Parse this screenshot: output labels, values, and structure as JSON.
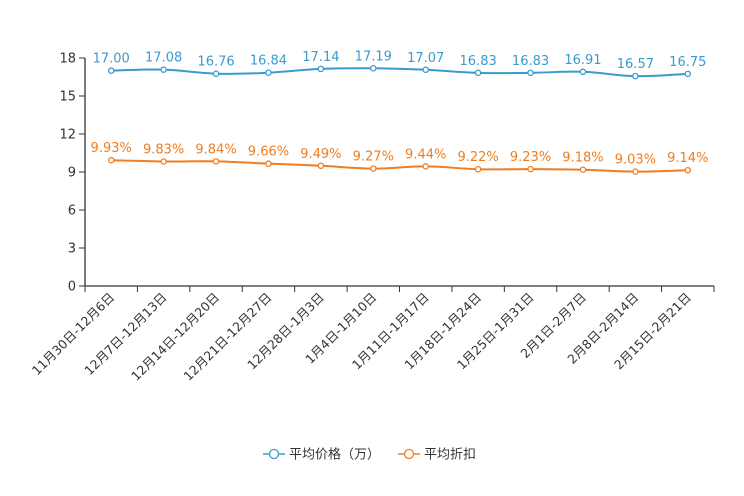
{
  "chart_data": {
    "type": "line",
    "categories": [
      "11月30日-12月6日",
      "12月7日-12月13日",
      "12月14日-12月20日",
      "12月21日-12月27日",
      "12月28日-1月3日",
      "1月4日-1月10日",
      "1月11日-1月17日",
      "1月18日-1月24日",
      "1月25日-1月31日",
      "2月1日-2月7日",
      "2月8日-2月14日",
      "2月15日-2月21日"
    ],
    "series": [
      {
        "name": "平均价格（万）",
        "values": [
          17.0,
          17.08,
          16.76,
          16.84,
          17.14,
          17.19,
          17.07,
          16.83,
          16.83,
          16.91,
          16.57,
          16.75
        ],
        "labels": [
          "17.00",
          "17.08",
          "16.76",
          "16.84",
          "17.14",
          "17.19",
          "17.07",
          "16.83",
          "16.83",
          "16.91",
          "16.57",
          "16.75"
        ],
        "color": "#3a9bd0"
      },
      {
        "name": "平均折扣",
        "values": [
          9.93,
          9.83,
          9.84,
          9.66,
          9.49,
          9.27,
          9.44,
          9.22,
          9.23,
          9.18,
          9.03,
          9.14
        ],
        "labels": [
          "9.93%",
          "9.83%",
          "9.84%",
          "9.66%",
          "9.49%",
          "9.27%",
          "9.44%",
          "9.22%",
          "9.23%",
          "9.18%",
          "9.03%",
          "9.14%"
        ],
        "color": "#f07d1f"
      }
    ],
    "yticks": [
      "0",
      "3",
      "6",
      "9",
      "12",
      "15",
      "18"
    ],
    "ylim": [
      0,
      18
    ],
    "title": "",
    "xlabel": "",
    "ylabel": "",
    "legend_position": "bottom-center",
    "grid": false
  }
}
